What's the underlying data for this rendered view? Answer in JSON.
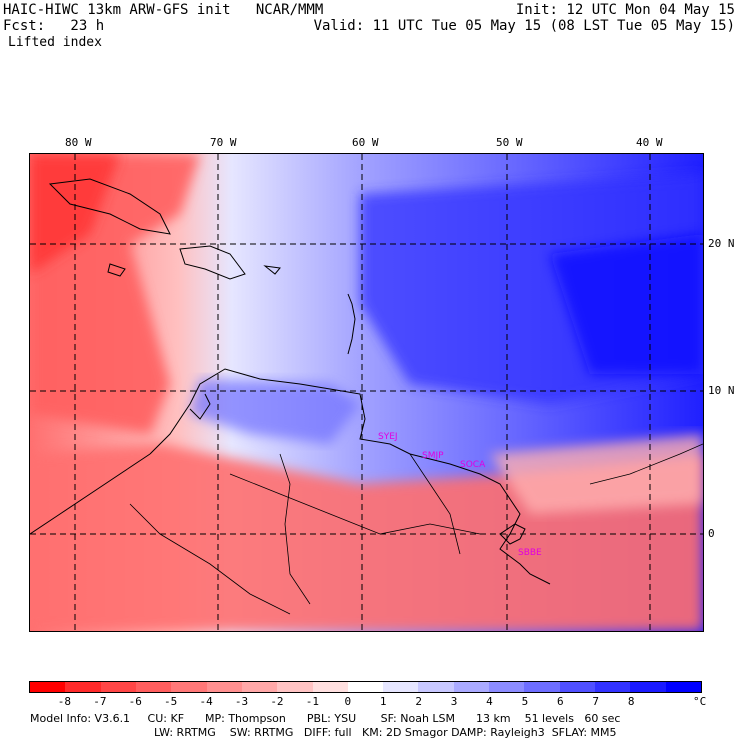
{
  "header": {
    "left_line1": "HAIC-HIWC 13km ARW-GFS init   NCAR/MMM",
    "left_line2": "Fcst:   23 h",
    "right_line1": "Init: 12 UTC Mon 04 May 15",
    "right_line2": "Valid: 11 UTC Tue 05 May 15 (08 LST Tue 05 May 15)",
    "field_name": "Lifted index"
  },
  "map": {
    "lon_labels": [
      "80 W",
      "70 W",
      "60 W",
      "50 W",
      "40 W"
    ],
    "lat_labels": [
      "20 N",
      "10 N",
      "0"
    ],
    "stations": [
      "SYEJ",
      "SMJP",
      "SOCA",
      "SBBE"
    ]
  },
  "colorbar": {
    "ticks": [
      "-8",
      "-7",
      "-6",
      "-5",
      "-4",
      "-3",
      "-2",
      "-1",
      "0",
      "1",
      "2",
      "3",
      "4",
      "5",
      "6",
      "7",
      "8"
    ],
    "unit": "°C",
    "colors": [
      "#ff0000",
      "#ff2a2a",
      "#ff4646",
      "#ff5e5e",
      "#ff7878",
      "#ff9090",
      "#ffa8a8",
      "#ffc4c4",
      "#ffe0e0",
      "#ffffff",
      "#e6e6ff",
      "#c8c8ff",
      "#aaaaff",
      "#8c8cff",
      "#6e6eff",
      "#5050ff",
      "#3232ff",
      "#1a1aff",
      "#0000ff"
    ]
  },
  "footer": {
    "line1": "Model Info: V3.6.1     CU: KF      MP: Thompson      PBL: YSU       SF: Noah LSM      13 km    51 levels   60 sec",
    "line2": "LW: RRTMG    SW: RRTMG   DIFF: full   KM: 2D Smagor DAMP: Rayleigh3  SFLAY: MM5"
  }
}
